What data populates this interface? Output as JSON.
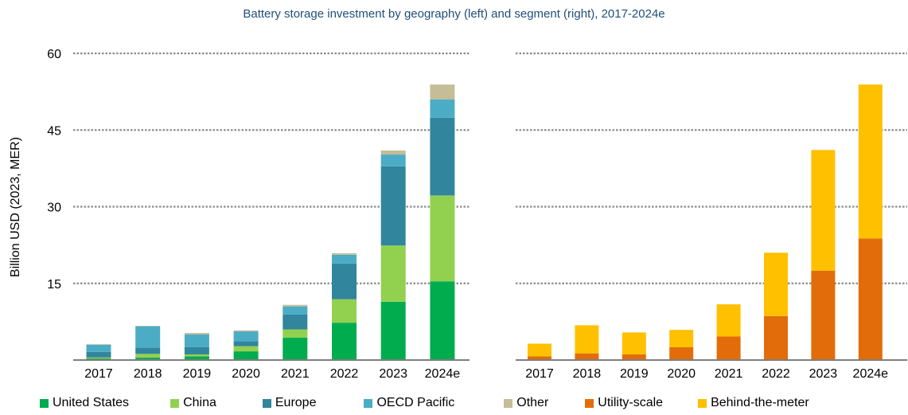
{
  "chart_data": [
    {
      "type": "bar",
      "stacked": true,
      "title": "Battery storage investment by geography (left) and segment (right), 2017-2024e",
      "ylabel": "Billion USD (2023, MER)",
      "ylim": [
        0,
        60
      ],
      "yticks": [
        15,
        30,
        45,
        60
      ],
      "grid": true,
      "categories": [
        "2017",
        "2018",
        "2019",
        "2020",
        "2021",
        "2022",
        "2023",
        "2024e"
      ],
      "series": [
        {
          "name": "United States",
          "color": "#00ac4e",
          "values": [
            0.3,
            0.5,
            0.7,
            1.7,
            4.4,
            7.3,
            11.4,
            15.4
          ]
        },
        {
          "name": "China",
          "color": "#92d050",
          "values": [
            0.2,
            0.7,
            0.4,
            1.0,
            1.6,
            4.6,
            11.0,
            16.8
          ]
        },
        {
          "name": "Europe",
          "color": "#31859c",
          "values": [
            1.1,
            1.2,
            1.4,
            1.0,
            2.9,
            7.0,
            15.5,
            15.2
          ]
        },
        {
          "name": "OECD Pacific",
          "color": "#4bacc6",
          "values": [
            1.4,
            4.2,
            2.5,
            1.9,
            1.6,
            1.7,
            2.3,
            3.6
          ]
        },
        {
          "name": "Other",
          "color": "#c4bd97",
          "values": [
            0.1,
            0.1,
            0.3,
            0.2,
            0.3,
            0.3,
            0.8,
            2.9
          ]
        }
      ]
    },
    {
      "type": "bar",
      "stacked": true,
      "ylim": [
        0,
        60
      ],
      "grid": true,
      "categories": [
        "2017",
        "2018",
        "2019",
        "2020",
        "2021",
        "2022",
        "2023",
        "2024e"
      ],
      "series": [
        {
          "name": "Utility-scale",
          "color": "#e36c0a",
          "values": [
            0.7,
            1.3,
            1.1,
            2.5,
            4.6,
            8.6,
            17.5,
            23.8
          ]
        },
        {
          "name": "Behind-the-meter",
          "color": "#ffc000",
          "values": [
            2.5,
            5.5,
            4.3,
            3.4,
            6.3,
            12.4,
            23.6,
            30.1
          ]
        }
      ]
    }
  ],
  "legend": [
    "United States",
    "China",
    "Europe",
    "OECD Pacific",
    "Other",
    "Utility-scale",
    "Behind-the-meter"
  ],
  "legend_colors": [
    "#00ac4e",
    "#92d050",
    "#31859c",
    "#4bacc6",
    "#c4bd97",
    "#e36c0a",
    "#ffc000"
  ]
}
